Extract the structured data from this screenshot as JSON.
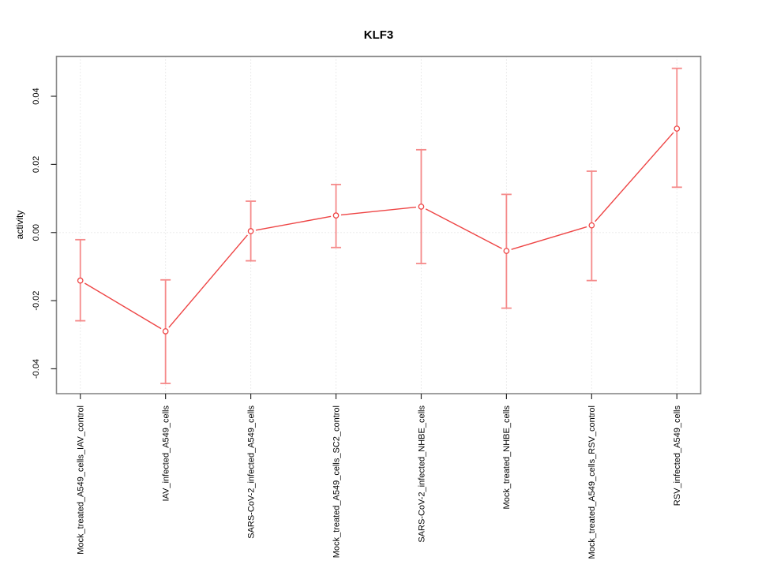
{
  "chart_data": {
    "type": "line",
    "title": "KLF3",
    "xlabel": "",
    "ylabel": "activity",
    "legend_position": "none",
    "marker": "open-circle",
    "error_bars": true,
    "grid": {
      "vertical_dotted": true,
      "horizontal_dotted_at_zero": true
    },
    "categories": [
      "Mock_treated_A549_cells_IAV_control",
      "IAV_infected_A549_cells",
      "SARS-CoV-2_infected_A549_cells",
      "Mock_treated_A549_cells_SC2_control",
      "SARS-CoV-2_infected_NHBE_cells",
      "Mock_treated_NHBE_cells",
      "Mock_treated_A549_cells_RSV_control",
      "RSV_infected_A549_cells"
    ],
    "series": [
      {
        "name": "activity",
        "values": [
          -0.0141,
          -0.029,
          0.0004,
          0.005,
          0.0076,
          -0.0054,
          0.0021,
          0.0305
        ],
        "error_low": [
          -0.0259,
          -0.0443,
          -0.0083,
          -0.0044,
          -0.0091,
          -0.0222,
          -0.0141,
          0.0133
        ],
        "error_high": [
          -0.0021,
          -0.0139,
          0.0092,
          0.0141,
          0.0243,
          0.0112,
          0.018,
          0.0482
        ]
      }
    ],
    "ylim": [
      -0.0473,
      0.0517
    ],
    "yticks": [
      -0.04,
      -0.02,
      0,
      0.02,
      0.04
    ],
    "ytick_labels": [
      "-0.04",
      "-0.02",
      "0.00",
      "0.02",
      "0.04"
    ],
    "colors": {
      "line": "#ee4444",
      "point_stroke": "#ee4444",
      "point_fill": "#ffffff",
      "error_bar": "#f58a8a",
      "grid": "#d9d9d9",
      "plot_border": "#888888",
      "tick": "#2b2b2b",
      "text": "#000000",
      "background": "#ffffff"
    }
  }
}
